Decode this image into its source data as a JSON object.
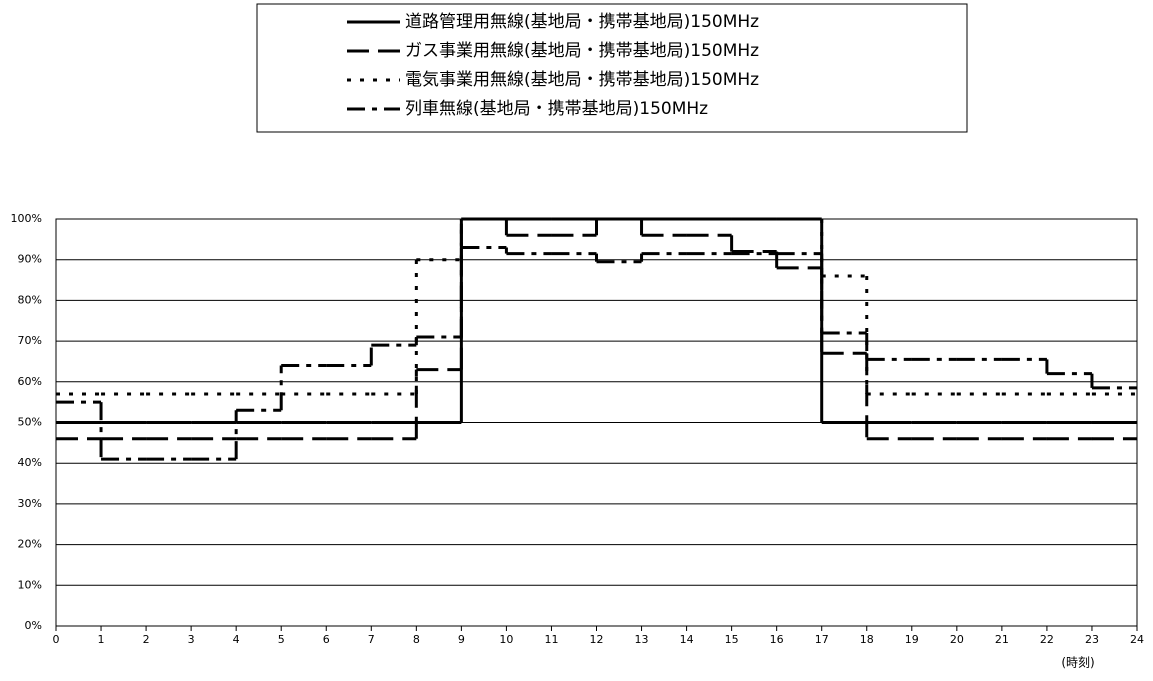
{
  "chart_data": {
    "type": "step",
    "x": [
      0,
      1,
      2,
      3,
      4,
      5,
      6,
      7,
      8,
      9,
      10,
      11,
      12,
      13,
      14,
      15,
      16,
      17,
      18,
      19,
      20,
      21,
      22,
      23
    ],
    "series": [
      {
        "name": "道路管理用無線(基地局・携帯基地局)150MHz",
        "color": "#000000",
        "dash": "none",
        "values": [
          50,
          50,
          50,
          50,
          50,
          50,
          50,
          50,
          50,
          100,
          100,
          100,
          100,
          100,
          100,
          100,
          100,
          50,
          50,
          50,
          50,
          50,
          50,
          50
        ]
      },
      {
        "name": "ガス事業用無線(基地局・携帯基地局)150MHz",
        "color": "#000000",
        "dash": "long-dash",
        "values": [
          46,
          46,
          46,
          46,
          46,
          46,
          46,
          46,
          63,
          100,
          96,
          96,
          100,
          96,
          96,
          92,
          88,
          67,
          46,
          46,
          46,
          46,
          46,
          46
        ]
      },
      {
        "name": "電気事業用無線(基地局・携帯基地局)150MHz",
        "color": "#000000",
        "dash": "dot",
        "values": [
          57,
          57,
          57,
          57,
          57,
          57,
          57,
          57,
          90,
          100,
          100,
          100,
          100,
          100,
          100,
          100,
          100,
          86,
          57,
          57,
          57,
          57,
          57,
          57
        ]
      },
      {
        "name": "列車無線(基地局・携帯基地局)150MHz",
        "color": "#000000",
        "dash": "dash-dot",
        "values": [
          55,
          41,
          41,
          41,
          53,
          64,
          64,
          69,
          71,
          93,
          91.5,
          91.5,
          89.5,
          91.5,
          91.5,
          91.5,
          91.5,
          72,
          65.5,
          65.5,
          65.5,
          65.5,
          62,
          58.5
        ]
      }
    ],
    "xlim": [
      0,
      24
    ],
    "xticks": [
      0,
      1,
      2,
      3,
      4,
      5,
      6,
      7,
      8,
      9,
      10,
      11,
      12,
      13,
      14,
      15,
      16,
      17,
      18,
      19,
      20,
      21,
      22,
      23,
      24
    ],
    "ylim": [
      0,
      100
    ],
    "yticks": [
      {
        "value": 0,
        "label": "0%"
      },
      {
        "value": 10,
        "label": "10%"
      },
      {
        "value": 20,
        "label": "20%"
      },
      {
        "value": 30,
        "label": "30%"
      },
      {
        "value": 40,
        "label": "40%"
      },
      {
        "value": 50,
        "label": "50%"
      },
      {
        "value": 60,
        "label": "60%"
      },
      {
        "value": 70,
        "label": "70%"
      },
      {
        "value": 80,
        "label": "80%"
      },
      {
        "value": 90,
        "label": "90%"
      },
      {
        "value": 100,
        "label": "100%"
      }
    ],
    "x_label": "(時刻)",
    "grid": true
  }
}
